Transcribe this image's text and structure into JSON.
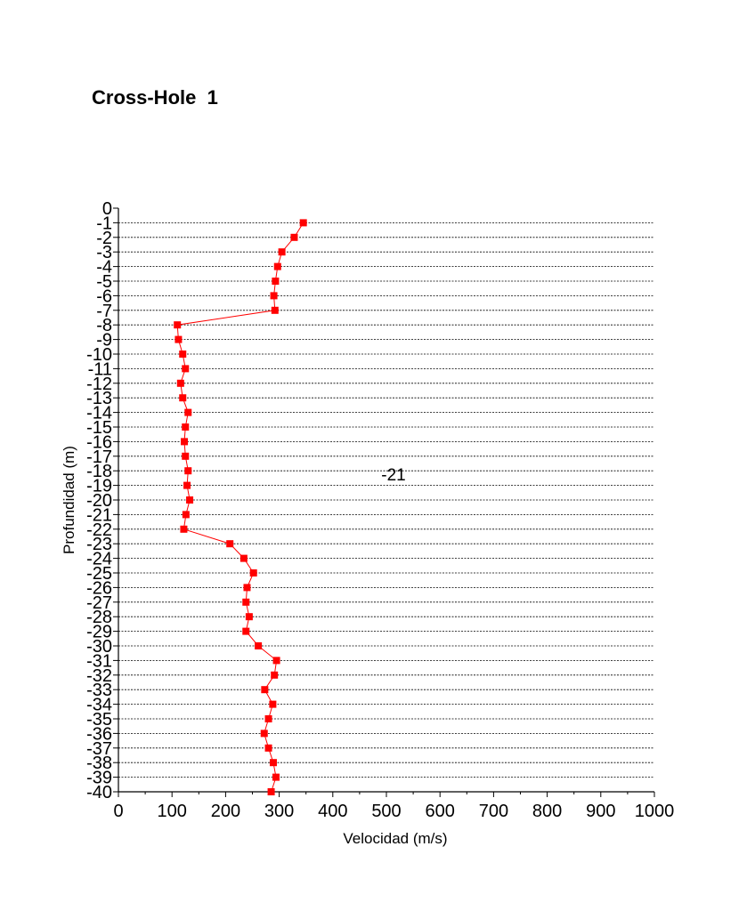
{
  "title": "Cross-Hole  1",
  "chart_data": {
    "type": "line",
    "xlabel": "Velocidad (m/s)",
    "ylabel": "Profundidad (m)",
    "xlim": [
      0,
      1000
    ],
    "ylim": [
      -40,
      0
    ],
    "x_ticks": [
      0,
      100,
      200,
      300,
      400,
      500,
      600,
      700,
      800,
      900,
      1000
    ],
    "y_ticks": [
      0,
      -1,
      -2,
      -3,
      -4,
      -5,
      -6,
      -7,
      -8,
      -9,
      -10,
      -11,
      -12,
      -13,
      -14,
      -15,
      -16,
      -17,
      -18,
      -19,
      -20,
      -21,
      -22,
      -23,
      -24,
      -25,
      -26,
      -27,
      -28,
      -29,
      -30,
      -31,
      -32,
      -33,
      -34,
      -35,
      -36,
      -37,
      -38,
      -39,
      -40
    ],
    "grid": "horizontal dashed",
    "annotation": "-21",
    "series": [
      {
        "color": "#ff0000",
        "marker": "square",
        "points": [
          {
            "x": 345,
            "y": -1
          },
          {
            "x": 328,
            "y": -2
          },
          {
            "x": 305,
            "y": -3
          },
          {
            "x": 297,
            "y": -4
          },
          {
            "x": 293,
            "y": -5
          },
          {
            "x": 290,
            "y": -6
          },
          {
            "x": 292,
            "y": -7
          },
          {
            "x": 110,
            "y": -8
          },
          {
            "x": 112,
            "y": -9
          },
          {
            "x": 120,
            "y": -10
          },
          {
            "x": 125,
            "y": -11
          },
          {
            "x": 116,
            "y": -12
          },
          {
            "x": 120,
            "y": -13
          },
          {
            "x": 130,
            "y": -14
          },
          {
            "x": 125,
            "y": -15
          },
          {
            "x": 123,
            "y": -16
          },
          {
            "x": 125,
            "y": -17
          },
          {
            "x": 130,
            "y": -18
          },
          {
            "x": 128,
            "y": -19
          },
          {
            "x": 133,
            "y": -20
          },
          {
            "x": 126,
            "y": -21
          },
          {
            "x": 122,
            "y": -22
          },
          {
            "x": 208,
            "y": -23
          },
          {
            "x": 234,
            "y": -24
          },
          {
            "x": 252,
            "y": -25
          },
          {
            "x": 240,
            "y": -26
          },
          {
            "x": 238,
            "y": -27
          },
          {
            "x": 244,
            "y": -28
          },
          {
            "x": 238,
            "y": -29
          },
          {
            "x": 261,
            "y": -30
          },
          {
            "x": 295,
            "y": -31
          },
          {
            "x": 291,
            "y": -32
          },
          {
            "x": 273,
            "y": -33
          },
          {
            "x": 288,
            "y": -34
          },
          {
            "x": 280,
            "y": -35
          },
          {
            "x": 272,
            "y": -36
          },
          {
            "x": 280,
            "y": -37
          },
          {
            "x": 289,
            "y": -38
          },
          {
            "x": 294,
            "y": -39
          },
          {
            "x": 285,
            "y": -40
          }
        ]
      }
    ]
  }
}
